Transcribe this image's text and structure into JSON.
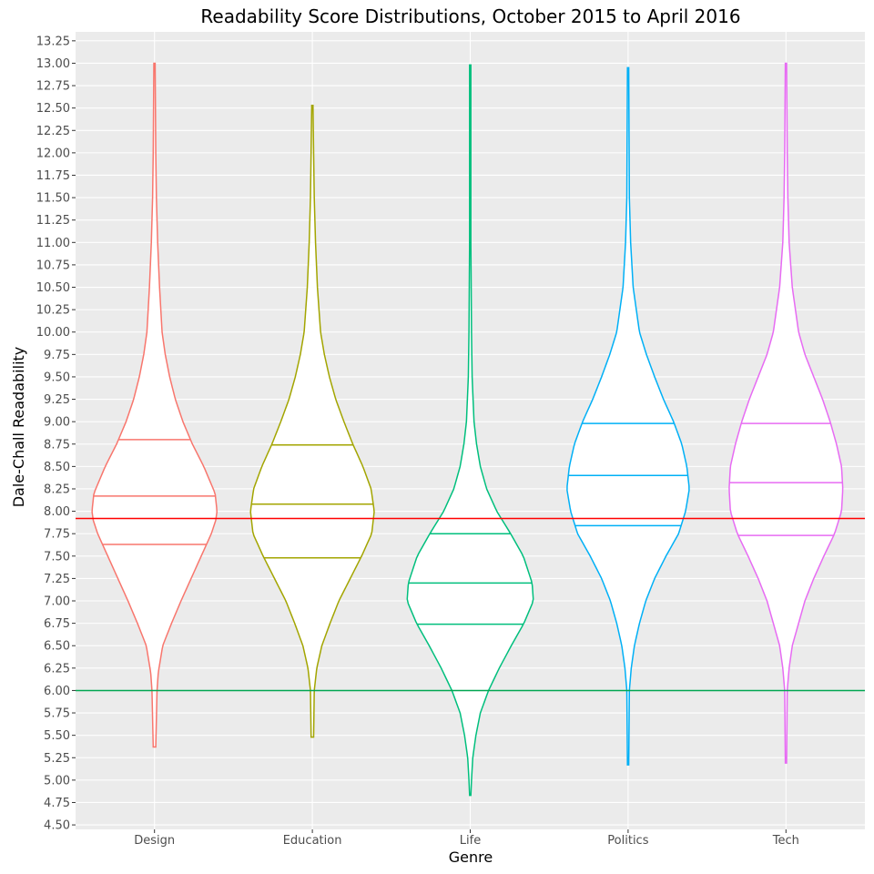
{
  "chart_data": {
    "type": "violin",
    "title": "Readability Score Distributions, October 2015 to April 2016",
    "xlabel": "Genre",
    "ylabel": "Dale-Chall Readability",
    "ylim": [
      4.45,
      13.35
    ],
    "yticks": [
      "4.50",
      "4.75",
      "5.00",
      "5.25",
      "5.50",
      "5.75",
      "6.00",
      "6.25",
      "6.50",
      "6.75",
      "7.00",
      "7.25",
      "7.50",
      "7.75",
      "8.00",
      "8.25",
      "8.50",
      "8.75",
      "9.00",
      "9.25",
      "9.50",
      "9.75",
      "10.00",
      "10.25",
      "10.50",
      "10.75",
      "11.00",
      "11.25",
      "11.50",
      "11.75",
      "12.00",
      "12.25",
      "12.50",
      "12.75",
      "13.00",
      "13.25"
    ],
    "grid": true,
    "legend": "none",
    "panel_background": "#ebebeb",
    "reference_lines": [
      {
        "y": 7.92,
        "color": "#ff0000"
      },
      {
        "y": 6.0,
        "color": "#00a651"
      }
    ],
    "categories": [
      "Design",
      "Education",
      "Life",
      "Politics",
      "Tech"
    ],
    "series": [
      {
        "category": "Design",
        "color": "#f8766d",
        "min": 5.37,
        "max": 13.0,
        "quartiles": [
          7.63,
          8.17,
          8.8
        ],
        "density": [
          [
            5.37,
            0.02
          ],
          [
            6.0,
            0.04
          ],
          [
            6.2,
            0.06
          ],
          [
            6.5,
            0.13
          ],
          [
            6.75,
            0.27
          ],
          [
            7.0,
            0.42
          ],
          [
            7.25,
            0.58
          ],
          [
            7.5,
            0.74
          ],
          [
            7.75,
            0.9
          ],
          [
            7.9,
            0.97
          ],
          [
            8.0,
            0.99
          ],
          [
            8.2,
            0.96
          ],
          [
            8.5,
            0.78
          ],
          [
            8.75,
            0.6
          ],
          [
            9.0,
            0.45
          ],
          [
            9.25,
            0.33
          ],
          [
            9.5,
            0.24
          ],
          [
            9.75,
            0.17
          ],
          [
            10.0,
            0.12
          ],
          [
            10.5,
            0.08
          ],
          [
            11.0,
            0.05
          ],
          [
            11.5,
            0.03
          ],
          [
            12.0,
            0.02
          ],
          [
            13.0,
            0.01
          ]
        ]
      },
      {
        "category": "Education",
        "color": "#a3a500",
        "min": 5.48,
        "max": 12.53,
        "quartiles": [
          7.48,
          8.08,
          8.74
        ],
        "density": [
          [
            5.48,
            0.02
          ],
          [
            6.0,
            0.03
          ],
          [
            6.25,
            0.07
          ],
          [
            6.5,
            0.15
          ],
          [
            6.75,
            0.28
          ],
          [
            7.0,
            0.42
          ],
          [
            7.25,
            0.6
          ],
          [
            7.5,
            0.78
          ],
          [
            7.75,
            0.94
          ],
          [
            8.0,
            0.98
          ],
          [
            8.25,
            0.93
          ],
          [
            8.5,
            0.8
          ],
          [
            8.75,
            0.64
          ],
          [
            9.0,
            0.5
          ],
          [
            9.25,
            0.37
          ],
          [
            9.5,
            0.27
          ],
          [
            9.75,
            0.19
          ],
          [
            10.0,
            0.13
          ],
          [
            10.5,
            0.08
          ],
          [
            11.0,
            0.05
          ],
          [
            11.5,
            0.03
          ],
          [
            12.0,
            0.02
          ],
          [
            12.53,
            0.01
          ]
        ]
      },
      {
        "category": "Life",
        "color": "#00bf7d",
        "min": 4.83,
        "max": 12.98,
        "quartiles": [
          6.74,
          7.2,
          7.75
        ],
        "density": [
          [
            4.83,
            0.01
          ],
          [
            5.0,
            0.02
          ],
          [
            5.25,
            0.04
          ],
          [
            5.5,
            0.09
          ],
          [
            5.75,
            0.16
          ],
          [
            6.0,
            0.29
          ],
          [
            6.25,
            0.46
          ],
          [
            6.5,
            0.65
          ],
          [
            6.75,
            0.85
          ],
          [
            7.0,
            1.0
          ],
          [
            7.2,
            0.98
          ],
          [
            7.5,
            0.84
          ],
          [
            7.75,
            0.64
          ],
          [
            8.0,
            0.42
          ],
          [
            8.25,
            0.26
          ],
          [
            8.5,
            0.16
          ],
          [
            8.75,
            0.1
          ],
          [
            9.0,
            0.06
          ],
          [
            9.5,
            0.03
          ],
          [
            10.0,
            0.02
          ],
          [
            11.0,
            0.01
          ],
          [
            12.98,
            0.01
          ]
        ]
      },
      {
        "category": "Politics",
        "color": "#00b0f6",
        "min": 5.17,
        "max": 12.95,
        "quartiles": [
          7.84,
          8.4,
          8.98
        ],
        "density": [
          [
            5.17,
            0.01
          ],
          [
            6.0,
            0.02
          ],
          [
            6.25,
            0.05
          ],
          [
            6.5,
            0.1
          ],
          [
            6.75,
            0.18
          ],
          [
            7.0,
            0.28
          ],
          [
            7.25,
            0.42
          ],
          [
            7.5,
            0.6
          ],
          [
            7.75,
            0.8
          ],
          [
            8.0,
            0.91
          ],
          [
            8.25,
            0.97
          ],
          [
            8.5,
            0.93
          ],
          [
            8.75,
            0.85
          ],
          [
            9.0,
            0.72
          ],
          [
            9.25,
            0.56
          ],
          [
            9.5,
            0.42
          ],
          [
            9.75,
            0.29
          ],
          [
            10.0,
            0.18
          ],
          [
            10.5,
            0.08
          ],
          [
            11.0,
            0.04
          ],
          [
            11.5,
            0.02
          ],
          [
            12.95,
            0.01
          ]
        ]
      },
      {
        "category": "Tech",
        "color": "#e76bf3",
        "min": 5.19,
        "max": 13.0,
        "quartiles": [
          7.73,
          8.32,
          8.98
        ],
        "density": [
          [
            5.19,
            0.01
          ],
          [
            6.0,
            0.02
          ],
          [
            6.25,
            0.05
          ],
          [
            6.5,
            0.1
          ],
          [
            6.75,
            0.2
          ],
          [
            7.0,
            0.3
          ],
          [
            7.25,
            0.44
          ],
          [
            7.5,
            0.6
          ],
          [
            7.75,
            0.77
          ],
          [
            8.0,
            0.88
          ],
          [
            8.25,
            0.9
          ],
          [
            8.5,
            0.88
          ],
          [
            8.75,
            0.8
          ],
          [
            9.0,
            0.7
          ],
          [
            9.25,
            0.58
          ],
          [
            9.5,
            0.44
          ],
          [
            9.75,
            0.3
          ],
          [
            10.0,
            0.2
          ],
          [
            10.5,
            0.1
          ],
          [
            11.0,
            0.05
          ],
          [
            11.5,
            0.03
          ],
          [
            12.0,
            0.02
          ],
          [
            13.0,
            0.01
          ]
        ]
      }
    ]
  }
}
